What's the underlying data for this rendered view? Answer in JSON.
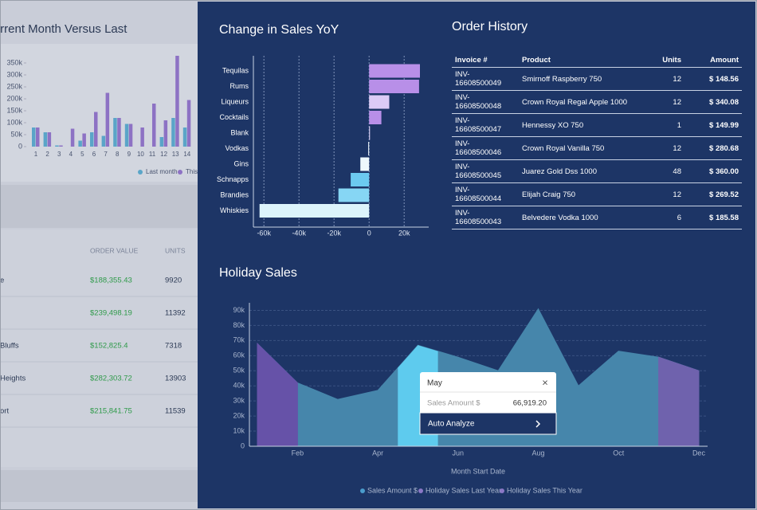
{
  "chart_data": [
    {
      "type": "bar",
      "title": "Current Month Versus Last",
      "categories": [
        "1",
        "2",
        "3",
        "4",
        "5",
        "6",
        "7",
        "8",
        "9",
        "10",
        "11",
        "12",
        "13",
        "14"
      ],
      "series": [
        {
          "name": "Last month",
          "color": "#5aa5c8",
          "values": [
            80000,
            60000,
            5000,
            0,
            25000,
            60000,
            45000,
            120000,
            95000,
            0,
            0,
            40000,
            120000,
            80000
          ]
        },
        {
          "name": "This month",
          "color": "#8d72c4",
          "values": [
            80000,
            60000,
            5000,
            75000,
            55000,
            145000,
            225000,
            120000,
            95000,
            80000,
            180000,
            110000,
            380000,
            195000
          ]
        }
      ],
      "ylim": [
        0,
        400000
      ],
      "yticks": [
        0,
        {
          "value": 50000,
          "label": "50k"
        },
        {
          "value": 100000,
          "label": "100k"
        },
        {
          "value": 150000,
          "label": "150k"
        },
        {
          "value": 200000,
          "label": "200k"
        },
        {
          "value": 250000,
          "label": "250k"
        },
        {
          "value": 300000,
          "label": "300k"
        },
        {
          "value": 350000,
          "label": "350k"
        }
      ]
    },
    {
      "type": "bar",
      "orientation": "horizontal",
      "title": "Change in Sales YoY",
      "categories": [
        "Tequilas",
        "Rums",
        "Liqueurs",
        "Cocktails",
        "Blank",
        "Vodkas",
        "Gins",
        "Schnapps",
        "Brandies",
        "Whiskies"
      ],
      "values": [
        29000,
        28500,
        11500,
        7000,
        500,
        -500,
        -5000,
        -10500,
        -17500,
        -62500
      ],
      "colors": [
        "#b88fe8",
        "#b88fe8",
        "#dccbf6",
        "#b88fe8",
        "#e0d4f8",
        "#eef8fc",
        "#eef8fc",
        "#6ccaf0",
        "#86d6f4",
        "#dcf4fb"
      ],
      "xlim": [
        -66000,
        34000
      ],
      "xticks": [
        {
          "value": -60000,
          "label": "-60k"
        },
        {
          "value": -40000,
          "label": "-40k"
        },
        {
          "value": -20000,
          "label": "-20k"
        },
        0,
        {
          "value": 20000,
          "label": "20k"
        }
      ],
      "grid": true
    },
    {
      "type": "area",
      "title": "Holiday Sales",
      "categories": [
        null,
        "Feb",
        null,
        "Apr",
        null,
        "Jun",
        null,
        "Aug",
        null,
        "Oct",
        null,
        "Dec"
      ],
      "series": [
        {
          "name": "Sales Amount $",
          "color": "#4686ab",
          "values": [
            68000,
            42000,
            31000,
            37000,
            66919.2,
            59000,
            50000,
            91000,
            40000,
            63000,
            59000,
            50000
          ]
        },
        {
          "name": "Holiday Sales Last Year",
          "color": "#6652a8",
          "values": [
            68000,
            42000,
            null,
            null,
            null,
            null,
            null,
            null,
            null,
            null,
            null,
            null
          ]
        },
        {
          "name": "Holiday Sales This Year",
          "color": "#6f62ad",
          "values": [
            null,
            null,
            null,
            null,
            null,
            null,
            null,
            null,
            null,
            null,
            59000,
            50000
          ]
        }
      ],
      "ylim": [
        0,
        95000
      ],
      "yticks": [
        0,
        {
          "value": 10000,
          "label": "10k"
        },
        {
          "value": 20000,
          "label": "20k"
        },
        {
          "value": 30000,
          "label": "30k"
        },
        {
          "value": 40000,
          "label": "40k"
        },
        {
          "value": 50000,
          "label": "50k"
        },
        {
          "value": 60000,
          "label": "60k"
        },
        {
          "value": 70000,
          "label": "70k"
        },
        {
          "value": 80000,
          "label": "80k"
        },
        {
          "value": 90000,
          "label": "90k"
        }
      ],
      "xlabel": "Month Start Date",
      "grid": true,
      "highlight_color": "#5ecbee"
    }
  ],
  "background_table": {
    "columns": [
      "ORDER VALUE",
      "UNITS"
    ],
    "rows": [
      {
        "name": "e",
        "value": "$188,355.43",
        "units": 9920
      },
      {
        "value": "$239,498.19",
        "units": 11392
      },
      {
        "name": "Bluffs",
        "value": "$152,825.4",
        "units": 7318
      },
      {
        "name": "Heights",
        "value": "$282,303.72",
        "units": 13903
      },
      {
        "name": "ort",
        "value": "$215,841.75",
        "units": 11539
      }
    ]
  },
  "order_history": {
    "title": "Order History",
    "columns": [
      "Invoice #",
      "Product",
      "Units",
      "Amount"
    ],
    "rows": [
      [
        "INV-16608500049",
        "Smirnoff Raspberry 750",
        12,
        "$ 148.56"
      ],
      [
        "INV-16608500048",
        "Crown Royal Regal Apple 1000",
        12,
        "$ 340.08"
      ],
      [
        "INV-16608500047",
        "Hennessy XO 750",
        1,
        "$ 149.99"
      ],
      [
        "INV-16608500046",
        "Crown Royal Vanilla 750",
        12,
        "$ 280.68"
      ],
      [
        "INV-16608500045",
        "Juarez Gold Dss 1000",
        48,
        "$ 360.00"
      ],
      [
        "INV-16608500044",
        "Elijah Craig 750",
        12,
        "$ 269.52"
      ],
      [
        "INV-16608500043",
        "Belvedere Vodka 1000",
        6,
        "$ 185.58"
      ]
    ]
  },
  "tooltip": {
    "title": "May",
    "label": "Sales Amount $",
    "value": "66,919.20",
    "action": "Auto Analyze"
  }
}
